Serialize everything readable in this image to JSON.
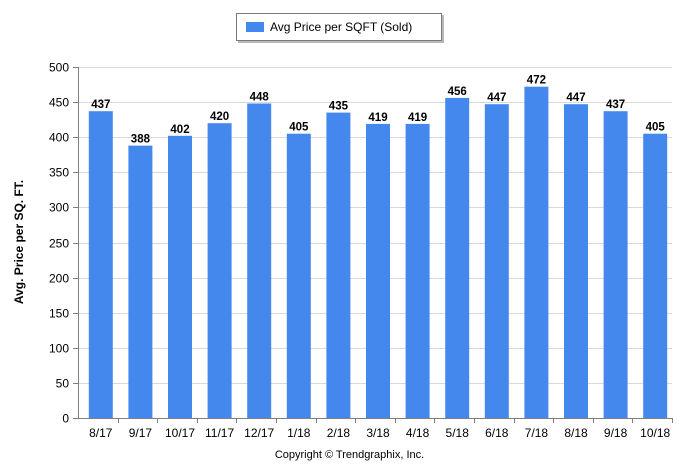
{
  "legend": {
    "label": "Avg Price per SQFT (Sold)"
  },
  "footer": {
    "copyright": "Copyright © Trendgraphix, Inc."
  },
  "chart_data": {
    "type": "bar",
    "categories": [
      "8/17",
      "9/17",
      "10/17",
      "11/17",
      "12/17",
      "1/18",
      "2/18",
      "3/18",
      "4/18",
      "5/18",
      "6/18",
      "7/18",
      "8/18",
      "9/18",
      "10/18"
    ],
    "series": [
      {
        "name": "Avg Price per SQFT (Sold)",
        "values": [
          437,
          388,
          402,
          420,
          448,
          405,
          435,
          419,
          419,
          456,
          447,
          472,
          447,
          437,
          405
        ],
        "color": "#4488ee"
      }
    ],
    "data_labels": [
      "437",
      "388",
      "402",
      "420",
      "448",
      "405",
      "435",
      "419",
      "419",
      "456",
      "447",
      "472",
      "447",
      "437",
      "405"
    ],
    "xlabel": "",
    "ylabel": "Avg. Price per SQ. FT.",
    "ylim": [
      0,
      500
    ],
    "yticks": [
      "0",
      "50",
      "100",
      "150",
      "200",
      "250",
      "300",
      "350",
      "400",
      "450",
      "500"
    ],
    "grid": true,
    "legend_position": "top-center"
  }
}
